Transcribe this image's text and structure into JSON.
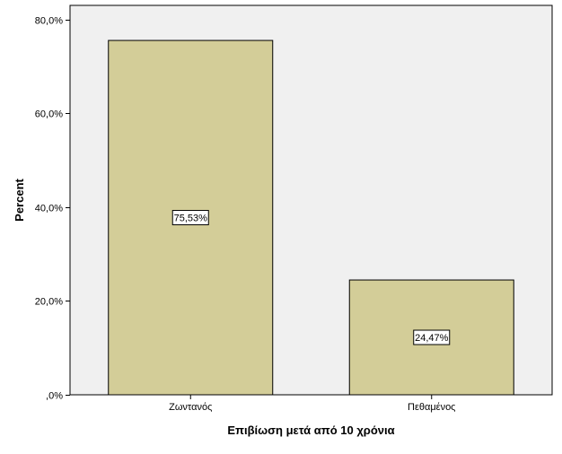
{
  "chart_data": {
    "type": "bar",
    "title": "",
    "xlabel": "Επιβίωση μετά από 10 χρόνια",
    "ylabel": "Percent",
    "categories": [
      "Ζωντανός",
      "Πεθαμένος"
    ],
    "values": [
      75.53,
      24.47
    ],
    "data_labels": [
      "75,53%",
      "24,47%"
    ],
    "ylim": [
      0,
      83
    ],
    "yticks": [
      0,
      20,
      40,
      60,
      80
    ],
    "ytick_labels": [
      ",0%",
      "20,0%",
      "40,0%",
      "60,0%",
      "80,0%"
    ],
    "grid": false,
    "legend": "none",
    "colors": {
      "bar_fill": "#d3cd98",
      "plot_background": "#f0f0f0",
      "bar_stroke": "#000000"
    }
  }
}
